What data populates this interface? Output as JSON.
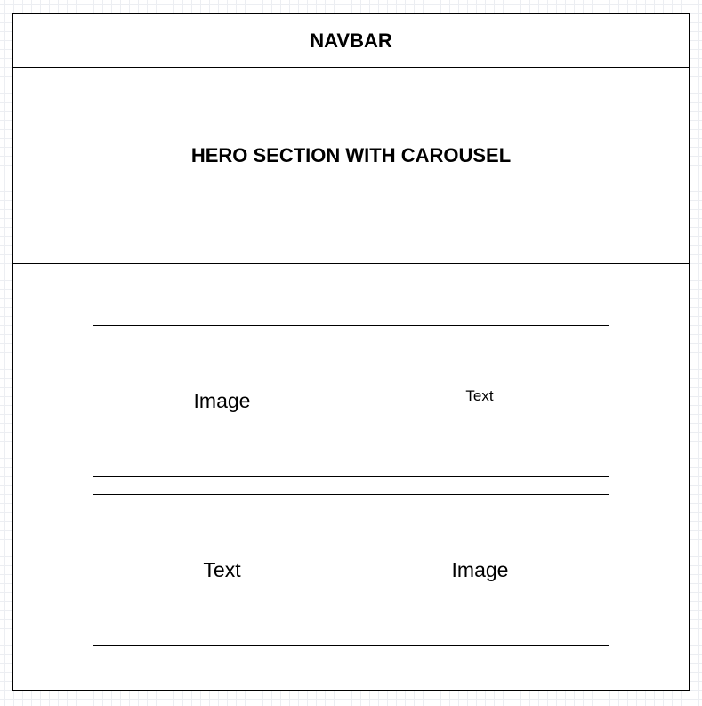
{
  "navbar": {
    "label": "NAVBAR"
  },
  "hero": {
    "label": "HERO SECTION WITH CAROUSEL"
  },
  "rows": [
    {
      "left": "Image",
      "right": "Text"
    },
    {
      "left": "Text",
      "right": "Image"
    }
  ]
}
